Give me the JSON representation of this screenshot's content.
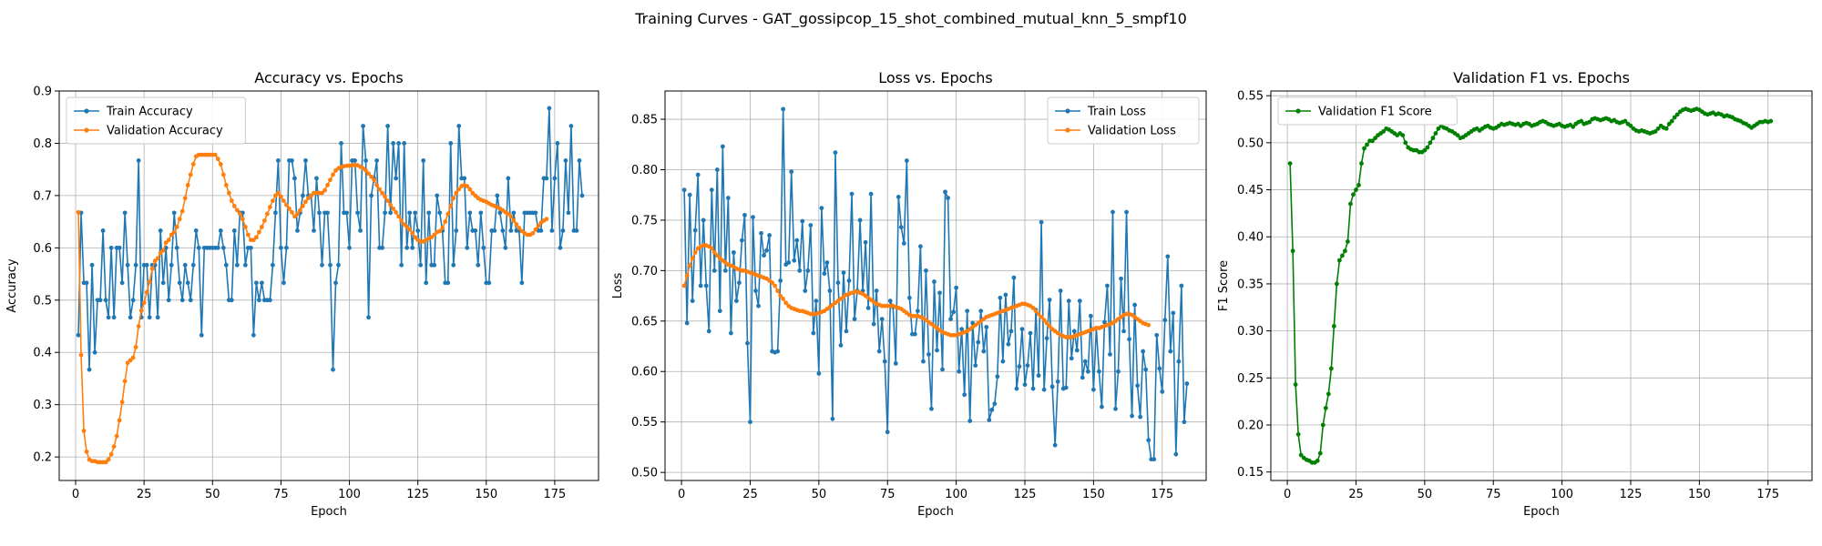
{
  "figure": {
    "suptitle": "Training Curves - GAT_gossipcop_15_shot_combined_mutual_knn_5_smpf10"
  },
  "colors": {
    "train": "#1f77b4",
    "validation": "#ff7f0e",
    "f1": "#008000",
    "grid": "#b0b0b0"
  },
  "chart_data": [
    {
      "type": "line",
      "title": "Accuracy vs. Epochs",
      "xlabel": "Epoch",
      "ylabel": "Accuracy",
      "xlim": [
        -6,
        191
      ],
      "ylim": [
        0.155,
        0.9
      ],
      "xticks": [
        0,
        25,
        50,
        75,
        100,
        125,
        150,
        175
      ],
      "yticks": [
        0.2,
        0.3,
        0.4,
        0.5,
        0.6,
        0.7,
        0.8,
        0.9
      ],
      "ytick_decimals": 1,
      "grid": true,
      "legend_position": "top-left",
      "x_start": 1,
      "series": [
        {
          "name": "Train Accuracy",
          "color": "#1f77b4",
          "values": [
            0.433,
            0.667,
            0.533,
            0.533,
            0.367,
            0.567,
            0.4,
            0.5,
            0.5,
            0.633,
            0.5,
            0.467,
            0.6,
            0.467,
            0.6,
            0.6,
            0.533,
            0.667,
            0.567,
            0.467,
            0.5,
            0.567,
            0.767,
            0.467,
            0.567,
            0.567,
            0.467,
            0.567,
            0.567,
            0.467,
            0.633,
            0.533,
            0.6,
            0.5,
            0.567,
            0.667,
            0.6,
            0.533,
            0.5,
            0.567,
            0.533,
            0.5,
            0.567,
            0.633,
            0.6,
            0.433,
            0.6,
            0.6,
            0.6,
            0.6,
            0.6,
            0.6,
            0.633,
            0.6,
            0.567,
            0.5,
            0.5,
            0.633,
            0.567,
            0.667,
            0.667,
            0.567,
            0.6,
            0.6,
            0.433,
            0.533,
            0.5,
            0.533,
            0.5,
            0.5,
            0.5,
            0.567,
            0.667,
            0.767,
            0.6,
            0.533,
            0.6,
            0.767,
            0.767,
            0.733,
            0.633,
            0.667,
            0.7,
            0.767,
            0.7,
            0.7,
            0.633,
            0.733,
            0.667,
            0.567,
            0.667,
            0.667,
            0.567,
            0.367,
            0.533,
            0.567,
            0.8,
            0.667,
            0.667,
            0.6,
            0.767,
            0.767,
            0.667,
            0.633,
            0.833,
            0.767,
            0.467,
            0.7,
            0.733,
            0.767,
            0.6,
            0.6,
            0.667,
            0.833,
            0.667,
            0.8,
            0.733,
            0.8,
            0.567,
            0.8,
            0.6,
            0.667,
            0.6,
            0.667,
            0.633,
            0.567,
            0.767,
            0.533,
            0.667,
            0.567,
            0.567,
            0.7,
            0.667,
            0.633,
            0.533,
            0.533,
            0.8,
            0.567,
            0.633,
            0.833,
            0.733,
            0.733,
            0.6,
            0.667,
            0.633,
            0.633,
            0.567,
            0.667,
            0.6,
            0.533,
            0.533,
            0.633,
            0.633,
            0.7,
            0.667,
            0.633,
            0.6,
            0.733,
            0.633,
            0.667,
            0.633,
            0.633,
            0.533,
            0.667,
            0.667,
            0.667,
            0.667,
            0.667,
            0.633,
            0.633,
            0.733,
            0.733,
            0.867,
            0.633,
            0.733,
            0.8,
            0.6,
            0.633,
            0.767,
            0.667,
            0.833,
            0.633,
            0.633,
            0.767,
            0.7
          ]
        },
        {
          "name": "Validation Accuracy",
          "color": "#ff7f0e",
          "values": [
            0.668,
            0.395,
            0.25,
            0.21,
            0.195,
            0.192,
            0.192,
            0.19,
            0.19,
            0.19,
            0.19,
            0.195,
            0.205,
            0.22,
            0.24,
            0.27,
            0.305,
            0.345,
            0.38,
            0.385,
            0.39,
            0.41,
            0.45,
            0.48,
            0.495,
            0.515,
            0.535,
            0.56,
            0.575,
            0.58,
            0.59,
            0.595,
            0.61,
            0.615,
            0.625,
            0.63,
            0.64,
            0.655,
            0.67,
            0.695,
            0.72,
            0.74,
            0.76,
            0.775,
            0.778,
            0.778,
            0.778,
            0.778,
            0.778,
            0.778,
            0.778,
            0.77,
            0.76,
            0.74,
            0.72,
            0.705,
            0.69,
            0.68,
            0.672,
            0.665,
            0.655,
            0.64,
            0.625,
            0.615,
            0.615,
            0.62,
            0.63,
            0.64,
            0.652,
            0.665,
            0.678,
            0.69,
            0.7,
            0.705,
            0.698,
            0.69,
            0.682,
            0.675,
            0.668,
            0.66,
            0.665,
            0.672,
            0.68,
            0.688,
            0.695,
            0.7,
            0.705,
            0.705,
            0.705,
            0.705,
            0.71,
            0.72,
            0.73,
            0.74,
            0.748,
            0.752,
            0.755,
            0.756,
            0.757,
            0.757,
            0.758,
            0.758,
            0.758,
            0.755,
            0.752,
            0.748,
            0.742,
            0.736,
            0.73,
            0.72,
            0.712,
            0.705,
            0.698,
            0.69,
            0.682,
            0.675,
            0.668,
            0.66,
            0.652,
            0.645,
            0.64,
            0.635,
            0.628,
            0.62,
            0.615,
            0.612,
            0.612,
            0.615,
            0.618,
            0.62,
            0.625,
            0.63,
            0.632,
            0.638,
            0.65,
            0.665,
            0.68,
            0.695,
            0.705,
            0.712,
            0.718,
            0.72,
            0.718,
            0.712,
            0.705,
            0.7,
            0.695,
            0.692,
            0.69,
            0.688,
            0.685,
            0.682,
            0.68,
            0.678,
            0.675,
            0.672,
            0.668,
            0.665,
            0.66,
            0.652,
            0.645,
            0.638,
            0.632,
            0.628,
            0.625,
            0.625,
            0.628,
            0.635,
            0.642,
            0.648,
            0.652,
            0.655
          ]
        }
      ]
    },
    {
      "type": "line",
      "title": "Loss vs. Epochs",
      "xlabel": "Epoch",
      "ylabel": "Loss",
      "xlim": [
        -6,
        191
      ],
      "ylim": [
        0.492,
        0.878
      ],
      "xticks": [
        0,
        25,
        50,
        75,
        100,
        125,
        150,
        175
      ],
      "yticks": [
        0.5,
        0.55,
        0.6,
        0.65,
        0.7,
        0.75,
        0.8,
        0.85
      ],
      "ytick_decimals": 2,
      "grid": true,
      "legend_position": "top-right",
      "x_start": 1,
      "series": [
        {
          "name": "Train Loss",
          "color": "#1f77b4",
          "values": [
            0.78,
            0.648,
            0.775,
            0.67,
            0.74,
            0.795,
            0.685,
            0.75,
            0.685,
            0.64,
            0.78,
            0.7,
            0.8,
            0.66,
            0.823,
            0.7,
            0.772,
            0.638,
            0.718,
            0.67,
            0.688,
            0.73,
            0.755,
            0.628,
            0.55,
            0.753,
            0.68,
            0.665,
            0.737,
            0.715,
            0.72,
            0.735,
            0.62,
            0.619,
            0.62,
            0.69,
            0.86,
            0.706,
            0.708,
            0.798,
            0.71,
            0.73,
            0.7,
            0.749,
            0.68,
            0.7,
            0.745,
            0.638,
            0.67,
            0.598,
            0.762,
            0.697,
            0.708,
            0.68,
            0.553,
            0.817,
            0.688,
            0.626,
            0.698,
            0.64,
            0.69,
            0.776,
            0.652,
            0.68,
            0.75,
            0.68,
            0.728,
            0.663,
            0.776,
            0.647,
            0.68,
            0.62,
            0.652,
            0.61,
            0.54,
            0.67,
            0.664,
            0.608,
            0.773,
            0.743,
            0.727,
            0.809,
            0.673,
            0.637,
            0.637,
            0.66,
            0.724,
            0.61,
            0.7,
            0.617,
            0.563,
            0.689,
            0.621,
            0.678,
            0.602,
            0.778,
            0.772,
            0.652,
            0.659,
            0.683,
            0.6,
            0.642,
            0.577,
            0.66,
            0.551,
            0.648,
            0.606,
            0.629,
            0.66,
            0.62,
            0.644,
            0.552,
            0.562,
            0.568,
            0.595,
            0.673,
            0.61,
            0.676,
            0.627,
            0.64,
            0.693,
            0.583,
            0.605,
            0.642,
            0.587,
            0.606,
            0.638,
            0.583,
            0.661,
            0.596,
            0.748,
            0.582,
            0.633,
            0.671,
            0.585,
            0.527,
            0.59,
            0.68,
            0.583,
            0.584,
            0.67,
            0.613,
            0.64,
            0.621,
            0.67,
            0.594,
            0.61,
            0.6,
            0.655,
            0.582,
            0.643,
            0.6,
            0.565,
            0.649,
            0.685,
            0.617,
            0.758,
            0.563,
            0.6,
            0.692,
            0.64,
            0.758,
            0.632,
            0.556,
            0.666,
            0.586,
            0.555,
            0.62,
            0.602,
            0.532,
            0.513,
            0.513,
            0.636,
            0.603,
            0.58,
            0.651,
            0.714,
            0.62,
            0.658,
            0.518,
            0.61,
            0.685,
            0.55,
            0.588
          ]
        },
        {
          "name": "Validation Loss",
          "color": "#ff7f0e",
          "values": [
            0.685,
            0.695,
            0.705,
            0.712,
            0.718,
            0.722,
            0.724,
            0.725,
            0.725,
            0.724,
            0.722,
            0.718,
            0.715,
            0.712,
            0.71,
            0.708,
            0.706,
            0.705,
            0.704,
            0.702,
            0.701,
            0.7,
            0.7,
            0.699,
            0.698,
            0.697,
            0.696,
            0.695,
            0.694,
            0.693,
            0.692,
            0.69,
            0.688,
            0.685,
            0.68,
            0.675,
            0.672,
            0.668,
            0.665,
            0.663,
            0.662,
            0.661,
            0.66,
            0.66,
            0.659,
            0.658,
            0.657,
            0.657,
            0.657,
            0.658,
            0.659,
            0.66,
            0.662,
            0.664,
            0.666,
            0.668,
            0.67,
            0.672,
            0.674,
            0.676,
            0.677,
            0.678,
            0.679,
            0.679,
            0.678,
            0.677,
            0.675,
            0.673,
            0.671,
            0.669,
            0.667,
            0.666,
            0.665,
            0.665,
            0.665,
            0.665,
            0.665,
            0.664,
            0.663,
            0.662,
            0.66,
            0.658,
            0.656,
            0.655,
            0.655,
            0.655,
            0.654,
            0.653,
            0.651,
            0.649,
            0.647,
            0.645,
            0.643,
            0.641,
            0.639,
            0.638,
            0.637,
            0.636,
            0.636,
            0.636,
            0.637,
            0.638,
            0.639,
            0.64,
            0.642,
            0.644,
            0.646,
            0.648,
            0.65,
            0.652,
            0.654,
            0.655,
            0.656,
            0.657,
            0.658,
            0.659,
            0.66,
            0.661,
            0.662,
            0.663,
            0.664,
            0.665,
            0.666,
            0.667,
            0.667,
            0.666,
            0.665,
            0.663,
            0.66,
            0.657,
            0.654,
            0.651,
            0.648,
            0.645,
            0.642,
            0.64,
            0.638,
            0.636,
            0.635,
            0.634,
            0.634,
            0.634,
            0.635,
            0.636,
            0.637,
            0.638,
            0.639,
            0.64,
            0.641,
            0.642,
            0.643,
            0.643,
            0.644,
            0.645,
            0.646,
            0.647,
            0.648,
            0.65,
            0.652,
            0.654,
            0.656,
            0.657,
            0.657,
            0.656,
            0.654,
            0.652,
            0.65,
            0.648,
            0.647,
            0.646
          ]
        }
      ]
    },
    {
      "type": "line",
      "title": "Validation F1 vs. Epochs",
      "xlabel": "Epoch",
      "ylabel": "F1 Score",
      "xlim": [
        -6,
        191
      ],
      "ylim": [
        0.141,
        0.555
      ],
      "xticks": [
        0,
        25,
        50,
        75,
        100,
        125,
        150,
        175
      ],
      "yticks": [
        0.15,
        0.2,
        0.25,
        0.3,
        0.35,
        0.4,
        0.45,
        0.5,
        0.55
      ],
      "ytick_decimals": 2,
      "grid": true,
      "legend_position": "top-left",
      "x_start": 1,
      "series": [
        {
          "name": "Validation F1 Score",
          "color": "#008000",
          "values": [
            0.478,
            0.385,
            0.243,
            0.19,
            0.168,
            0.165,
            0.163,
            0.162,
            0.16,
            0.16,
            0.162,
            0.17,
            0.2,
            0.218,
            0.233,
            0.26,
            0.305,
            0.35,
            0.375,
            0.38,
            0.385,
            0.395,
            0.435,
            0.445,
            0.45,
            0.455,
            0.478,
            0.494,
            0.498,
            0.502,
            0.502,
            0.505,
            0.508,
            0.51,
            0.512,
            0.515,
            0.514,
            0.512,
            0.51,
            0.508,
            0.51,
            0.508,
            0.5,
            0.495,
            0.493,
            0.492,
            0.492,
            0.49,
            0.49,
            0.492,
            0.495,
            0.5,
            0.505,
            0.51,
            0.515,
            0.518,
            0.516,
            0.515,
            0.513,
            0.512,
            0.51,
            0.508,
            0.505,
            0.506,
            0.508,
            0.51,
            0.512,
            0.514,
            0.515,
            0.513,
            0.515,
            0.517,
            0.518,
            0.516,
            0.515,
            0.516,
            0.518,
            0.52,
            0.519,
            0.52,
            0.521,
            0.52,
            0.519,
            0.52,
            0.518,
            0.52,
            0.521,
            0.52,
            0.518,
            0.519,
            0.52,
            0.522,
            0.523,
            0.522,
            0.52,
            0.519,
            0.518,
            0.519,
            0.52,
            0.518,
            0.517,
            0.518,
            0.519,
            0.517,
            0.52,
            0.522,
            0.523,
            0.52,
            0.521,
            0.522,
            0.525,
            0.526,
            0.525,
            0.524,
            0.525,
            0.526,
            0.525,
            0.523,
            0.524,
            0.522,
            0.521,
            0.522,
            0.523,
            0.52,
            0.518,
            0.515,
            0.513,
            0.512,
            0.513,
            0.512,
            0.511,
            0.51,
            0.511,
            0.512,
            0.515,
            0.518,
            0.516,
            0.515,
            0.52,
            0.523,
            0.527,
            0.53,
            0.533,
            0.535,
            0.536,
            0.535,
            0.534,
            0.535,
            0.536,
            0.535,
            0.533,
            0.531,
            0.53,
            0.531,
            0.532,
            0.53,
            0.531,
            0.53,
            0.528,
            0.529,
            0.528,
            0.527,
            0.525,
            0.524,
            0.523,
            0.521,
            0.52,
            0.518,
            0.516,
            0.518,
            0.52,
            0.522,
            0.522,
            0.523,
            0.522,
            0.523
          ]
        }
      ]
    }
  ]
}
